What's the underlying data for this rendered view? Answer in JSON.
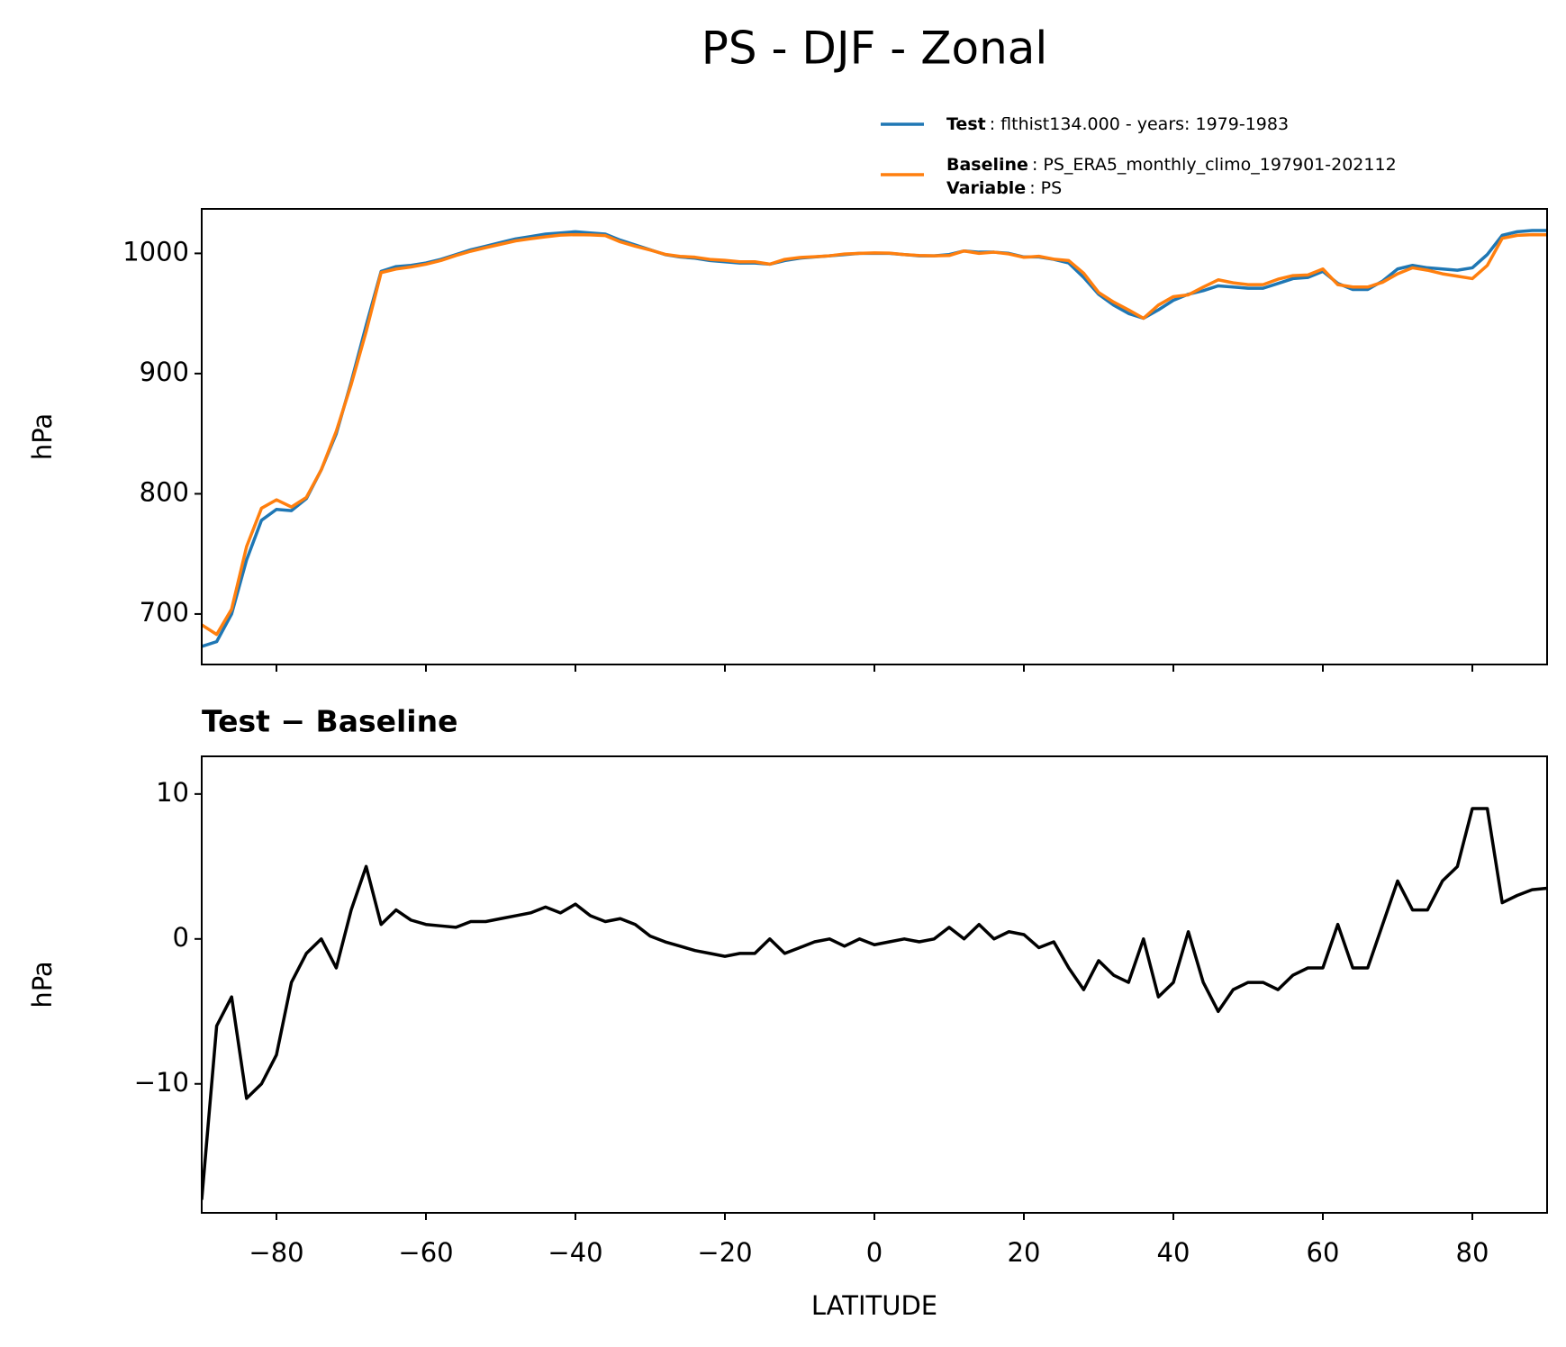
{
  "title": "PS - DJF - Zonal",
  "chart_data": [
    {
      "type": "line",
      "ylabel": "hPa",
      "x": [
        -90,
        -88,
        -86,
        -84,
        -82,
        -80,
        -78,
        -76,
        -74,
        -72,
        -70,
        -68,
        -66,
        -64,
        -62,
        -60,
        -58,
        -56,
        -54,
        -52,
        -50,
        -48,
        -46,
        -44,
        -42,
        -40,
        -38,
        -36,
        -34,
        -32,
        -30,
        -28,
        -26,
        -24,
        -22,
        -20,
        -18,
        -16,
        -14,
        -12,
        -10,
        -8,
        -6,
        -4,
        -2,
        0,
        2,
        4,
        6,
        8,
        10,
        12,
        14,
        16,
        18,
        20,
        22,
        24,
        26,
        28,
        30,
        32,
        34,
        36,
        38,
        40,
        42,
        44,
        46,
        48,
        50,
        52,
        54,
        56,
        58,
        60,
        62,
        64,
        66,
        68,
        70,
        72,
        74,
        76,
        78,
        80,
        82,
        84,
        86,
        88,
        90
      ],
      "series": [
        {
          "name": "Test",
          "description": ": flthist134.000 - years: 1979-1983",
          "color": "#1f77b4",
          "values": [
            673,
            677,
            700,
            745,
            778,
            787,
            786,
            796,
            820,
            850,
            893,
            940,
            985,
            989,
            990,
            992,
            995,
            999,
            1003,
            1006,
            1009,
            1012,
            1014,
            1016,
            1017,
            1018,
            1017,
            1016,
            1011,
            1007,
            1003,
            999,
            997,
            996,
            994,
            993,
            992,
            992,
            991,
            994,
            996,
            997,
            998,
            999,
            1000,
            1000,
            1000,
            999,
            998,
            998,
            999,
            1002,
            1001,
            1001,
            1000,
            997,
            997,
            995,
            992,
            980,
            966,
            957,
            950,
            946,
            953,
            961,
            966,
            969,
            973,
            972,
            971,
            971,
            975,
            979,
            980,
            985,
            975,
            970,
            970,
            977,
            987,
            990,
            988,
            987,
            986,
            988,
            999,
            1015,
            1018,
            1019,
            1019
          ]
        },
        {
          "name": "Baseline",
          "description": ": PS_ERA5_monthly_climo_197901-202112",
          "color": "#ff7f0e",
          "values": [
            691,
            683,
            704,
            756,
            788,
            795,
            789,
            797,
            820,
            852,
            891,
            935,
            984,
            987,
            988.7,
            991,
            994.1,
            998.2,
            1001.8,
            1004.8,
            1007.6,
            1010.4,
            1012.2,
            1013.8,
            1015.2,
            1015.6,
            1015.4,
            1014.8,
            1009.6,
            1006,
            1002.8,
            999.2,
            997.5,
            996.8,
            995,
            994.2,
            993,
            993,
            991,
            995,
            996.6,
            997.2,
            998,
            999.5,
            1000,
            1000.4,
            1000.2,
            999,
            998.2,
            998,
            998.2,
            1002,
            1000,
            1001,
            999.5,
            996.7,
            997.6,
            995.2,
            994,
            983.5,
            967.5,
            959.5,
            953,
            946,
            957,
            964,
            965.5,
            972,
            978,
            975.5,
            974,
            974,
            978.5,
            981.5,
            982,
            987,
            974,
            972,
            972,
            976,
            983,
            988,
            986,
            983,
            981,
            979,
            990,
            1012.5,
            1015,
            1015.6,
            1015.5
          ]
        }
      ],
      "legend_note": {
        "name": "Variable",
        "description": ": PS"
      },
      "xlim": [
        -90,
        90
      ],
      "xticks": [
        -80,
        -60,
        -40,
        -20,
        0,
        20,
        40,
        60,
        80
      ],
      "ylim": [
        658,
        1037
      ],
      "yticks": [
        700,
        800,
        900,
        1000
      ]
    },
    {
      "type": "line",
      "title": "Test − Baseline",
      "xlabel": "LATITUDE",
      "ylabel": "hPa",
      "color": "#000000",
      "x": [
        -90,
        -88,
        -86,
        -84,
        -82,
        -80,
        -78,
        -76,
        -74,
        -72,
        -70,
        -68,
        -66,
        -64,
        -62,
        -60,
        -58,
        -56,
        -54,
        -52,
        -50,
        -48,
        -46,
        -44,
        -42,
        -40,
        -38,
        -36,
        -34,
        -32,
        -30,
        -28,
        -26,
        -24,
        -22,
        -20,
        -18,
        -16,
        -14,
        -12,
        -10,
        -8,
        -6,
        -4,
        -2,
        0,
        2,
        4,
        6,
        8,
        10,
        12,
        14,
        16,
        18,
        20,
        22,
        24,
        26,
        28,
        30,
        32,
        34,
        36,
        38,
        40,
        42,
        44,
        46,
        48,
        50,
        52,
        54,
        56,
        58,
        60,
        62,
        64,
        66,
        68,
        70,
        72,
        74,
        76,
        78,
        80,
        82,
        84,
        86,
        88,
        90
      ],
      "values": [
        -18,
        -6,
        -4,
        -11,
        -10,
        -8,
        -3,
        -1,
        0,
        -2,
        2,
        5,
        1,
        2,
        1.3,
        1,
        0.9,
        0.8,
        1.2,
        1.2,
        1.4,
        1.6,
        1.8,
        2.2,
        1.8,
        2.4,
        1.6,
        1.2,
        1.4,
        1,
        0.2,
        -0.2,
        -0.5,
        -0.8,
        -1,
        -1.2,
        -1,
        -1,
        0,
        -1,
        -0.6,
        -0.2,
        0,
        -0.5,
        0,
        -0.4,
        -0.2,
        0,
        -0.2,
        0,
        0.8,
        0,
        1,
        0,
        0.5,
        0.3,
        -0.6,
        -0.2,
        -2,
        -3.5,
        -1.5,
        -2.5,
        -3,
        0,
        -4,
        -3,
        0.5,
        -3,
        -5,
        -3.5,
        -3,
        -3,
        -3.5,
        -2.5,
        -2,
        -2,
        1,
        -2,
        -2,
        1,
        4,
        2,
        2,
        4,
        5,
        9,
        9,
        2.5,
        3,
        3.4,
        3.5
      ],
      "xlim": [
        -90,
        90
      ],
      "xticks": [
        {
          "value": -80,
          "label": "−80"
        },
        {
          "value": -60,
          "label": "−60"
        },
        {
          "value": -40,
          "label": "−40"
        },
        {
          "value": -20,
          "label": "−20"
        },
        0,
        20,
        40,
        60,
        80
      ],
      "ylim": [
        -18.9,
        12.6
      ],
      "yticks": [
        {
          "value": -10,
          "label": "−10"
        },
        0,
        10
      ]
    }
  ]
}
